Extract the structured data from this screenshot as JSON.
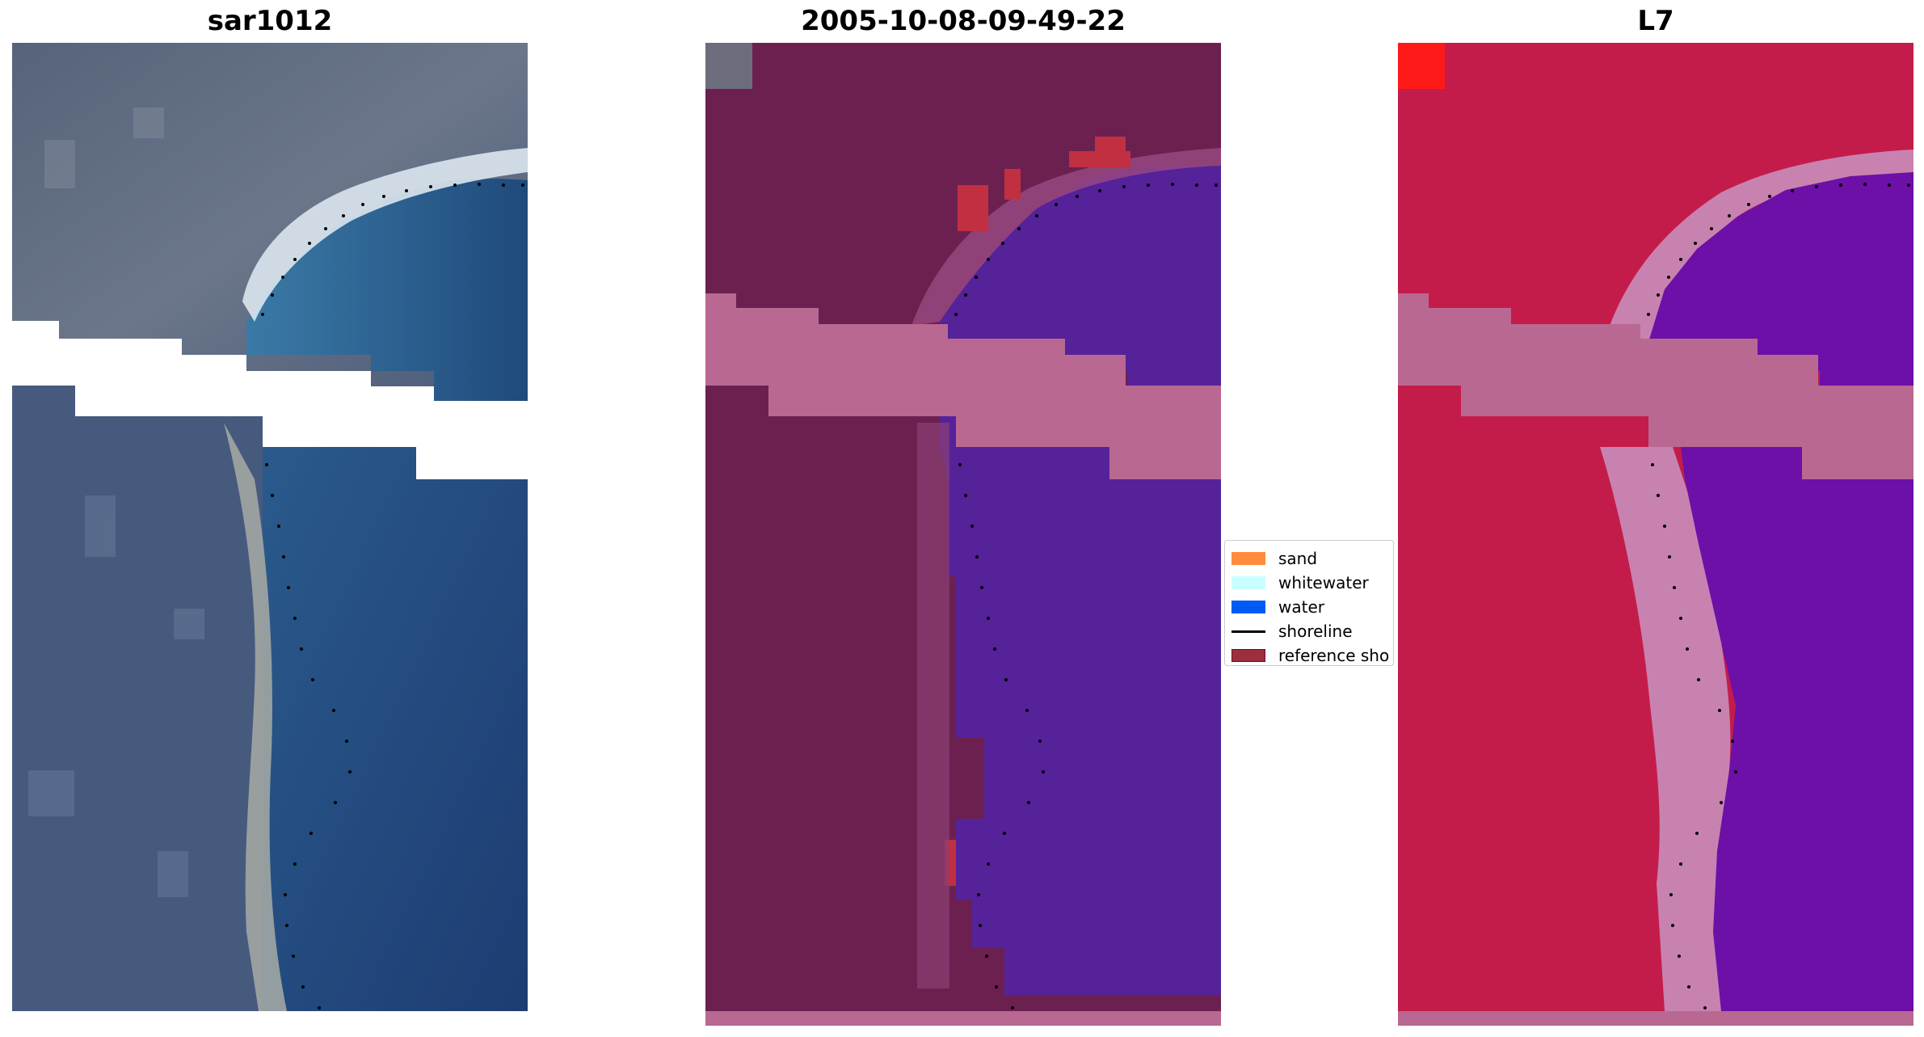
{
  "panels": [
    {
      "title": "sar1012"
    },
    {
      "title": "2005-10-08-09-49-22"
    },
    {
      "title": "L7"
    }
  ],
  "legend": {
    "items": [
      {
        "label": "sand",
        "type": "patch",
        "color": "#ff8c3c"
      },
      {
        "label": "whitewater",
        "type": "patch",
        "color": "#c8ffff"
      },
      {
        "label": "water",
        "type": "patch",
        "color": "#005af5"
      },
      {
        "label": "shoreline",
        "type": "line",
        "color": "#000000"
      },
      {
        "label": "reference sho",
        "type": "patch",
        "color": "#9b303c"
      }
    ]
  },
  "colors": {
    "rgb_land": "#4e5f7a",
    "rgb_water": "#1e3f74",
    "rgb_whitewater": "#e4eef2",
    "classified_land": "#6c2050",
    "classified_water": "#55229a",
    "classified_sand_overlay": "#c03040",
    "nodata_band": "#b96892",
    "swir_land": "#c41c4a",
    "swir_water": "#6c10a8",
    "swir_beach": "#c882b0",
    "shoreline_dots": "#000000"
  }
}
